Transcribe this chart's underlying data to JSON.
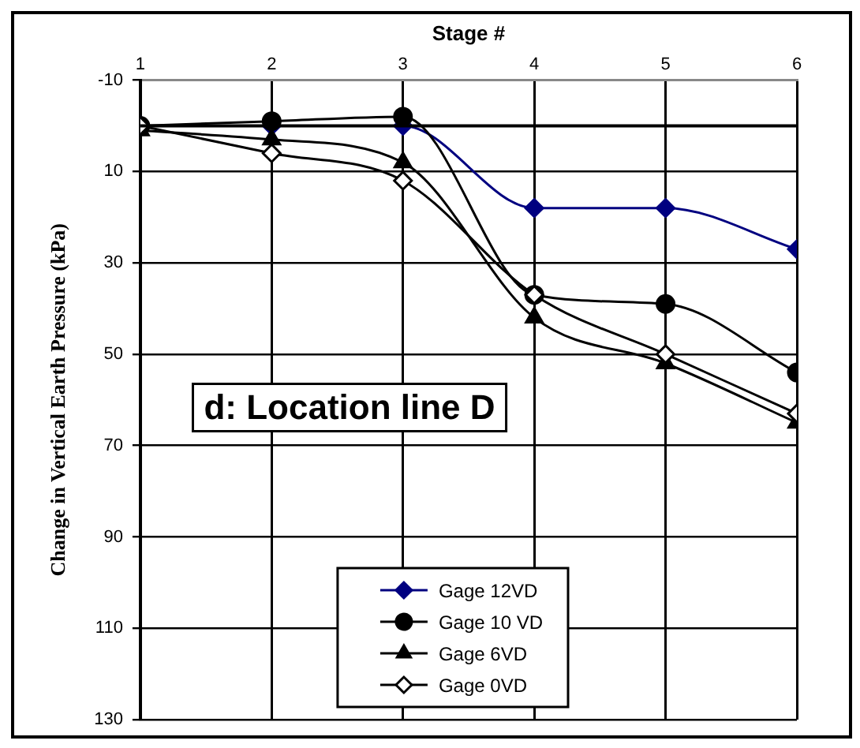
{
  "chart_data": {
    "type": "line",
    "xlabel": "Stage #",
    "ylabel": "Change in Vertical Earth Pressure (kPa)",
    "x": [
      1,
      2,
      3,
      4,
      5,
      6
    ],
    "xlim": [
      1,
      6
    ],
    "xticks": [
      1,
      2,
      3,
      4,
      5,
      6
    ],
    "ylim": [
      130,
      -10
    ],
    "yticks": [
      -10,
      10,
      30,
      50,
      70,
      90,
      110,
      130
    ],
    "series": [
      {
        "name": "Gage 12VD",
        "color": "#000080",
        "marker": "diamond",
        "values": [
          0,
          0,
          0,
          18,
          18,
          27
        ]
      },
      {
        "name": "Gage 10 VD",
        "color": "#000000",
        "marker": "circle",
        "values": [
          0,
          -1,
          -2,
          37,
          39,
          54
        ]
      },
      {
        "name": "Gage 6VD",
        "color": "#000000",
        "marker": "triangle",
        "values": [
          1,
          3,
          8,
          42,
          52,
          65
        ]
      },
      {
        "name": "Gage 0VD",
        "color": "#000000",
        "marker": "diamond-open",
        "values": [
          0,
          6,
          12,
          37,
          50,
          63
        ]
      }
    ],
    "ref_lines": [
      {
        "axis": "y",
        "value": 0,
        "color": "#000000"
      }
    ],
    "annotations": [
      "d: Location line D"
    ],
    "grid": true,
    "legend": "bottom"
  }
}
